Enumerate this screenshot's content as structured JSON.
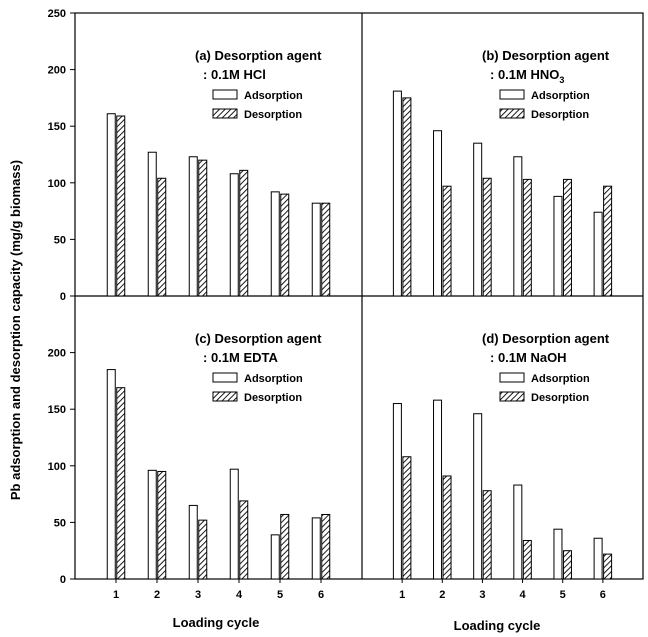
{
  "figure": {
    "ylabel": "Pb adsorption and desorption capacity  (mg/g biomass)",
    "xlabel_left": "Loading cycle",
    "xlabel_right": "Loading cycle",
    "legend_adsorption": "Adsorption",
    "legend_desorption": "Desorption"
  },
  "chart_data": [
    {
      "type": "bar",
      "title_line1": "(a) Desorption agent",
      "title_line2": ": 0.1M HCl",
      "categories": [
        "1",
        "2",
        "3",
        "4",
        "5",
        "6"
      ],
      "series": [
        {
          "name": "Adsorption",
          "values": [
            161,
            127,
            123,
            108,
            92,
            82
          ]
        },
        {
          "name": "Desorption",
          "values": [
            159,
            104,
            120,
            111,
            90,
            82
          ]
        }
      ],
      "ylim": [
        0,
        250
      ],
      "yticks": [
        0,
        50,
        100,
        150,
        200,
        250
      ]
    },
    {
      "type": "bar",
      "title_line1": "(b) Desorption agent",
      "title_line2": ": 0.1M HNO",
      "title_subscript": "3",
      "categories": [
        "1",
        "2",
        "3",
        "4",
        "5",
        "6"
      ],
      "series": [
        {
          "name": "Adsorption",
          "values": [
            181,
            146,
            135,
            123,
            88,
            74
          ]
        },
        {
          "name": "Desorption",
          "values": [
            175,
            97,
            104,
            103,
            103,
            97
          ]
        }
      ],
      "ylim": [
        0,
        250
      ]
    },
    {
      "type": "bar",
      "title_line1": "(c) Desorption agent",
      "title_line2": ": 0.1M EDTA",
      "categories": [
        "1",
        "2",
        "3",
        "4",
        "5",
        "6"
      ],
      "series": [
        {
          "name": "Adsorption",
          "values": [
            185,
            96,
            65,
            97,
            39,
            54
          ]
        },
        {
          "name": "Desorption",
          "values": [
            169,
            95,
            52,
            69,
            57,
            57
          ]
        }
      ],
      "ylim": [
        0,
        250
      ],
      "yticks": [
        0,
        50,
        100,
        150,
        200
      ]
    },
    {
      "type": "bar",
      "title_line1": "(d) Desorption agent",
      "title_line2": ": 0.1M NaOH",
      "categories": [
        "1",
        "2",
        "3",
        "4",
        "5",
        "6"
      ],
      "series": [
        {
          "name": "Adsorption",
          "values": [
            155,
            158,
            146,
            83,
            44,
            36
          ]
        },
        {
          "name": "Desorption",
          "values": [
            108,
            91,
            78,
            34,
            25,
            22
          ]
        }
      ],
      "ylim": [
        0,
        250
      ]
    }
  ]
}
